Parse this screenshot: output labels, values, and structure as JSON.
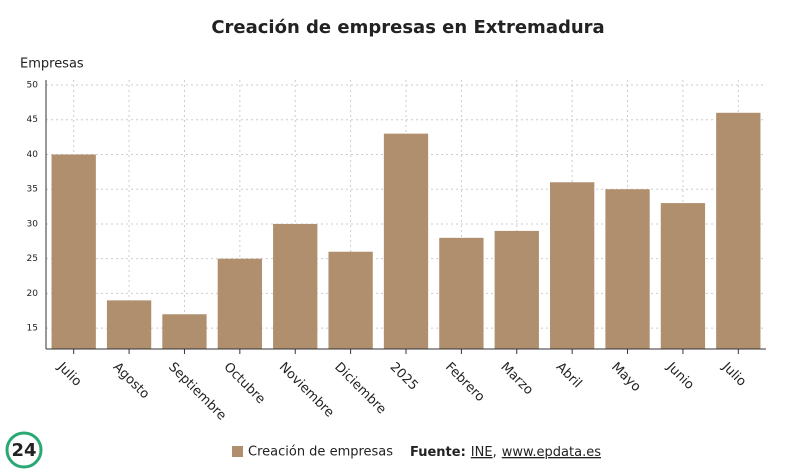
{
  "chart_data": {
    "type": "bar",
    "title": "Creación de empresas en Extremadura",
    "y_label": "Empresas",
    "categories": [
      "Julio",
      "Agosto",
      "Septiembre",
      "Octubre",
      "Noviembre",
      "Diciembre",
      "2025",
      "Febrero",
      "Marzo",
      "Abril",
      "Mayo",
      "Junio",
      "Julio"
    ],
    "series": [
      {
        "name": "Creación de empresas",
        "color": "#b08f6e",
        "values": [
          40,
          19,
          17,
          25,
          30,
          26,
          43,
          28,
          29,
          36,
          35,
          33,
          46
        ]
      }
    ],
    "ylim": [
      12,
      50
    ],
    "yticks": [
      15,
      20,
      25,
      30,
      35,
      40,
      45,
      50
    ],
    "grid": true,
    "source_label": "Fuente:",
    "source_links": [
      "INE",
      "www.epdata.es"
    ],
    "source_separator": ",",
    "logo": "24"
  }
}
